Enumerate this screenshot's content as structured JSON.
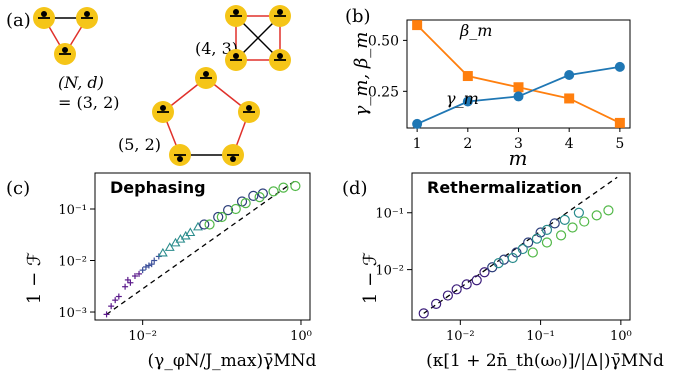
{
  "panels": {
    "a": {
      "label": "(a)",
      "graph_labels": [
        {
          "id": "g1",
          "text_lines": [
            "(N, d)",
            "= (3, 2)"
          ]
        },
        {
          "id": "g2",
          "text_lines": [
            "(4, 3)"
          ]
        },
        {
          "id": "g3",
          "text_lines": [
            "(5, 2)"
          ]
        }
      ],
      "colors": {
        "node_fill": "#f5c518",
        "edge_red": "#e0312b",
        "edge_black": "#000000"
      }
    },
    "b": {
      "label": "(b)"
    },
    "c": {
      "label": "(c)",
      "title": "Dephasing",
      "ylabel": "1 − ℱ",
      "xlabel": "(γ_φN/J_max)γ̄MNd",
      "xticks": [
        "10⁻²",
        "10⁰"
      ],
      "yticks": [
        "10⁻¹",
        "10⁻²",
        "10⁻³"
      ]
    },
    "d": {
      "label": "(d)",
      "title": "Rethermalization",
      "ylabel": "1 − ℱ",
      "xlabel": "(κ[1 + 2n̄_th(ω₀)]/|Δ|)γ̄MNd",
      "xticks": [
        "10⁻²",
        "10⁻¹",
        "10⁰"
      ],
      "yticks": [
        "10⁻¹",
        "10⁻²"
      ]
    }
  },
  "chart_data": [
    {
      "panel": "b",
      "type": "line",
      "x": [
        1,
        2,
        3,
        4,
        5
      ],
      "xlabel": "m",
      "ylabel": "γ_m, β_m",
      "xticks": [
        "1",
        "2",
        "3",
        "4",
        "5"
      ],
      "yticks": [
        "0.50",
        "0.25"
      ],
      "ylim": [
        0.07,
        0.6
      ],
      "series": [
        {
          "name": "β_m",
          "marker": "square",
          "color": "#ff7f0e",
          "values": [
            0.575,
            0.325,
            0.27,
            0.215,
            0.095
          ]
        },
        {
          "name": "γ_m",
          "marker": "circle",
          "color": "#1f77b4",
          "values": [
            0.09,
            0.2,
            0.225,
            0.33,
            0.37
          ]
        }
      ],
      "grid": false
    },
    {
      "panel": "c",
      "type": "scatter",
      "log_x": true,
      "log_y": true,
      "xlim": [
        0.0025,
        1.3
      ],
      "ylim": [
        0.0007,
        0.5
      ],
      "trend": {
        "style": "dashed",
        "x": [
          0.0035,
          0.9
        ],
        "y": [
          0.0009,
          0.38
        ]
      },
      "series": [
        {
          "marker": "plus",
          "color": "#5b1a8b",
          "points": [
            [
              0.0035,
              0.0009
            ],
            [
              0.004,
              0.0013
            ],
            [
              0.0045,
              0.0017
            ],
            [
              0.005,
              0.002
            ],
            [
              0.006,
              0.0031
            ],
            [
              0.007,
              0.0037
            ],
            [
              0.008,
              0.005
            ],
            [
              0.0065,
              0.0042
            ],
            [
              0.009,
              0.0055
            ]
          ]
        },
        {
          "marker": "plus",
          "color": "#3b4f9a",
          "points": [
            [
              0.01,
              0.0065
            ],
            [
              0.012,
              0.008
            ],
            [
              0.014,
              0.01
            ],
            [
              0.013,
              0.0085
            ],
            [
              0.016,
              0.012
            ],
            [
              0.011,
              0.0075
            ]
          ]
        },
        {
          "marker": "triangle",
          "color": "#2a8c8c",
          "points": [
            [
              0.018,
              0.014
            ],
            [
              0.022,
              0.018
            ],
            [
              0.026,
              0.022
            ],
            [
              0.03,
              0.026
            ],
            [
              0.035,
              0.03
            ],
            [
              0.04,
              0.035
            ],
            [
              0.05,
              0.045
            ]
          ]
        },
        {
          "marker": "circle",
          "color": "#2c3e7a",
          "points": [
            [
              0.06,
              0.05
            ],
            [
              0.09,
              0.07
            ],
            [
              0.12,
              0.095
            ],
            [
              0.18,
              0.14
            ],
            [
              0.25,
              0.18
            ],
            [
              0.33,
              0.2
            ]
          ]
        },
        {
          "marker": "circle",
          "color": "#52b848",
          "points": [
            [
              0.07,
              0.05
            ],
            [
              0.1,
              0.07
            ],
            [
              0.15,
              0.1
            ],
            [
              0.2,
              0.13
            ],
            [
              0.3,
              0.17
            ],
            [
              0.45,
              0.22
            ],
            [
              0.6,
              0.26
            ],
            [
              0.85,
              0.28
            ]
          ]
        }
      ]
    },
    {
      "panel": "d",
      "type": "scatter",
      "log_x": true,
      "log_y": true,
      "xlim": [
        0.0025,
        1.3
      ],
      "ylim": [
        0.0013,
        0.5
      ],
      "trend": {
        "style": "dashed",
        "x": [
          0.0035,
          0.9
        ],
        "y": [
          0.0017,
          0.42
        ]
      },
      "series": [
        {
          "marker": "circle",
          "color": "#3b1c7a",
          "points": [
            [
              0.0035,
              0.0017
            ],
            [
              0.005,
              0.0025
            ],
            [
              0.007,
              0.0035
            ],
            [
              0.009,
              0.0045
            ],
            [
              0.012,
              0.0055
            ],
            [
              0.016,
              0.0065
            ],
            [
              0.02,
              0.009
            ]
          ]
        },
        {
          "marker": "circle",
          "color": "#2c3e7a",
          "points": [
            [
              0.025,
              0.011
            ],
            [
              0.035,
              0.015
            ],
            [
              0.05,
              0.02
            ],
            [
              0.07,
              0.03
            ],
            [
              0.1,
              0.045
            ],
            [
              0.15,
              0.065
            ]
          ]
        },
        {
          "marker": "circle",
          "color": "#2a8c8c",
          "points": [
            [
              0.03,
              0.013
            ],
            [
              0.045,
              0.016
            ],
            [
              0.06,
              0.023
            ],
            [
              0.09,
              0.035
            ],
            [
              0.12,
              0.05
            ],
            [
              0.2,
              0.075
            ],
            [
              0.3,
              0.1
            ]
          ]
        },
        {
          "marker": "circle",
          "color": "#52b848",
          "points": [
            [
              0.08,
              0.02
            ],
            [
              0.12,
              0.03
            ],
            [
              0.18,
              0.04
            ],
            [
              0.25,
              0.055
            ],
            [
              0.35,
              0.07
            ],
            [
              0.5,
              0.09
            ],
            [
              0.7,
              0.11
            ]
          ]
        }
      ]
    }
  ]
}
